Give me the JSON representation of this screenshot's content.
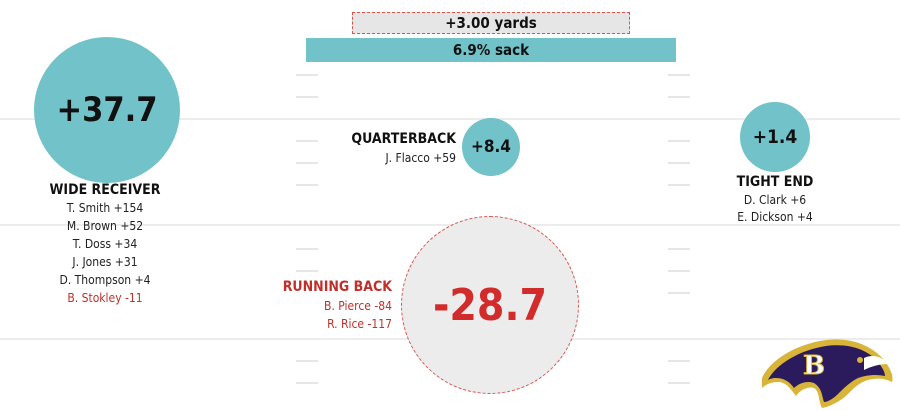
{
  "top_bars": {
    "yards_label": "+3.00 yards",
    "sack_label": "6.9% sack"
  },
  "wide_receiver": {
    "value": "+37.7",
    "title": "WIDE RECEIVER",
    "players": [
      {
        "text": "T. Smith +154",
        "negative": false
      },
      {
        "text": "M. Brown +52",
        "negative": false
      },
      {
        "text": "T. Doss +34",
        "negative": false
      },
      {
        "text": "J. Jones +31",
        "negative": false
      },
      {
        "text": "D. Thompson +4",
        "negative": false
      },
      {
        "text": "B. Stokley -11",
        "negative": true
      }
    ]
  },
  "quarterback": {
    "value": "+8.4",
    "title": "QUARTERBACK",
    "players": [
      {
        "text": "J. Flacco +59",
        "negative": false
      }
    ]
  },
  "tight_end": {
    "value": "+1.4",
    "title": "TIGHT END",
    "players": [
      {
        "text": "D. Clark +6",
        "negative": false
      },
      {
        "text": "E. Dickson +4",
        "negative": false
      }
    ]
  },
  "running_back": {
    "value": "-28.7",
    "title": "RUNNING BACK",
    "players": [
      {
        "text": "B. Pierce -84",
        "negative": true
      },
      {
        "text": "R. Rice -117",
        "negative": true
      }
    ]
  },
  "colors": {
    "positive_circle": "#72c2c9",
    "negative_circle": "#ececec",
    "negative_text": "#c0302b",
    "logo_purple": "#2b1b5c",
    "logo_gold": "#d8b43a"
  },
  "logo": {
    "icon": "ravens-logo-icon",
    "letter": "B"
  }
}
